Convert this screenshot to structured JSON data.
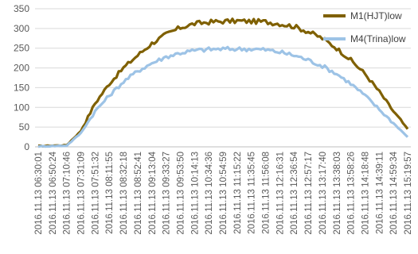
{
  "chart_data": {
    "type": "line",
    "x": [
      "2016.11.13 06:30:01",
      "2016.11.13 06:50:24",
      "2016.11.13 07:10:46",
      "2016.11.13 07:31:09",
      "2016.11.13 07:51:32",
      "2016.11.13 08:11:55",
      "2016.11.13 08:32:18",
      "2016.11.13 08:52:41",
      "2016.11.13 09:13:04",
      "2016.11.13 09:33:27",
      "2016.11.13 09:53:50",
      "2016.11.13 10:14:13",
      "2016.11.13 10:34:36",
      "2016.11.13 10:54:59",
      "2016.11.13 11:15:22",
      "2016.11.13 11:35:45",
      "2016.11.13 11:56:08",
      "2016.11.13 12:16:31",
      "2016.11.13 12:36:54",
      "2016.11.13 12:57:17",
      "2016.11.13 13:17:40",
      "2016.11.13 13:38:03",
      "2016.11.13 13:58:26",
      "2016.11.13 14:18:48",
      "2016.11.13 14:39:11",
      "2016.11.13 14:59:34",
      "2016.11.13 15:19:57"
    ],
    "series": [
      {
        "name": "M1(HJT)low",
        "color": "#7f6000",
        "values": [
          2,
          3,
          4,
          40,
          110,
          160,
          200,
          232,
          262,
          285,
          302,
          312,
          316,
          318,
          319,
          318,
          317,
          312,
          305,
          292,
          275,
          250,
          220,
          185,
          140,
          90,
          45
        ]
      },
      {
        "name": "M4(Trina)low",
        "color": "#9dc3e6",
        "values": [
          1,
          2,
          3,
          35,
          90,
          130,
          165,
          192,
          212,
          228,
          238,
          244,
          247,
          248,
          248,
          248,
          246,
          240,
          232,
          220,
          205,
          185,
          160,
          130,
          95,
          60,
          25
        ]
      }
    ],
    "ylim": [
      0,
      350
    ],
    "yticks": [
      0,
      50,
      100,
      150,
      200,
      250,
      300,
      350
    ],
    "grid": true,
    "legend": "top-right"
  }
}
